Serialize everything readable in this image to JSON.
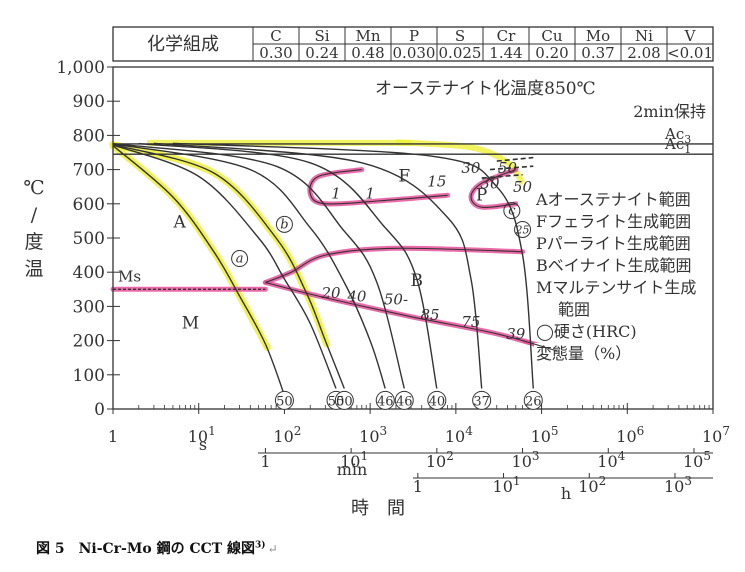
{
  "composition_table": {
    "header_label": "化学組成",
    "elements": [
      "C",
      "Si",
      "Mn",
      "P",
      "S",
      "Cr",
      "Cu",
      "Mo",
      "Ni",
      "V"
    ],
    "values": [
      "0.30",
      "0.24",
      "0.48",
      "0.030",
      "0.025",
      "1.44",
      "0.20",
      "0.37",
      "2.08",
      "<0.01"
    ]
  },
  "chart_data": {
    "type": "line",
    "title": "",
    "xscale": "log",
    "xlim": [
      1,
      10000000
    ],
    "ylim": [
      0,
      1000
    ],
    "ylabel": "温度/℃",
    "xlabel": "時間",
    "y_ticks": [
      "0",
      "100",
      "200",
      "300",
      "400",
      "500",
      "600",
      "700",
      "800",
      "900",
      "1,000"
    ],
    "x_axes": [
      {
        "unit": "s",
        "ticks": [
          {
            "at_s": 1,
            "base": "1",
            "exp": ""
          },
          {
            "at_s": 10,
            "base": "10",
            "exp": "1"
          },
          {
            "at_s": 100,
            "base": "10",
            "exp": "2"
          },
          {
            "at_s": 1000,
            "base": "10",
            "exp": "3"
          },
          {
            "at_s": 10000,
            "base": "10",
            "exp": "4"
          },
          {
            "at_s": 100000,
            "base": "10",
            "exp": "5"
          },
          {
            "at_s": 1000000,
            "base": "10",
            "exp": "6"
          },
          {
            "at_s": 10000000,
            "base": "10",
            "exp": "7"
          }
        ]
      },
      {
        "unit": "min",
        "ticks": [
          {
            "at_s": 60,
            "base": "1",
            "exp": ""
          },
          {
            "at_s": 600,
            "base": "10",
            "exp": "1"
          },
          {
            "at_s": 6000,
            "base": "10",
            "exp": "2"
          },
          {
            "at_s": 60000,
            "base": "10",
            "exp": "3"
          },
          {
            "at_s": 600000,
            "base": "10",
            "exp": "4"
          },
          {
            "at_s": 6000000,
            "base": "10",
            "exp": "5"
          }
        ]
      },
      {
        "unit": "h",
        "ticks": [
          {
            "at_s": 3600,
            "base": "1",
            "exp": ""
          },
          {
            "at_s": 36000,
            "base": "10",
            "exp": "1"
          },
          {
            "at_s": 360000,
            "base": "10",
            "exp": "2"
          },
          {
            "at_s": 3600000,
            "base": "10",
            "exp": "3"
          }
        ]
      }
    ],
    "austenitizing": {
      "text": "オーステナイト化温度850℃",
      "hold": "2min保持"
    },
    "critical_lines": [
      {
        "name": "Ac3",
        "label_base": "Ac",
        "label_sub": "3",
        "temp": 775
      },
      {
        "name": "Ac1",
        "label_base": "Ac",
        "label_sub": "1",
        "temp": 745
      }
    ],
    "ms": {
      "label": "Ms",
      "temp": 350
    },
    "cooling_curves": [
      {
        "points": [
          [
            1,
            770
          ],
          [
            5,
            620
          ],
          [
            15,
            460
          ],
          [
            30,
            330
          ],
          [
            60,
            190
          ],
          [
            100,
            40
          ]
        ],
        "hardness": "50",
        "highlight": true
      },
      {
        "points": [
          [
            1,
            772
          ],
          [
            10,
            680
          ],
          [
            50,
            500
          ],
          [
            100,
            380
          ],
          [
            200,
            250
          ],
          [
            400,
            60
          ]
        ],
        "hardness": "50",
        "highlight": false
      },
      {
        "points": [
          [
            1,
            773
          ],
          [
            15,
            690
          ],
          [
            80,
            500
          ],
          [
            180,
            340
          ],
          [
            300,
            200
          ],
          [
            500,
            60
          ]
        ],
        "hardness": "50",
        "highlight": true
      },
      {
        "points": [
          [
            1,
            775
          ],
          [
            40,
            700
          ],
          [
            200,
            530
          ],
          [
            500,
            370
          ],
          [
            1000,
            200
          ],
          [
            1500,
            60
          ]
        ],
        "hardness": "46",
        "highlight": false
      },
      {
        "points": [
          [
            1,
            776
          ],
          [
            80,
            710
          ],
          [
            500,
            520
          ],
          [
            1200,
            370
          ],
          [
            2500,
            60
          ]
        ],
        "hardness": "46",
        "highlight": false
      },
      {
        "points": [
          [
            2,
            776
          ],
          [
            200,
            720
          ],
          [
            1500,
            530
          ],
          [
            3500,
            380
          ],
          [
            6000,
            60
          ]
        ],
        "hardness": "40",
        "highlight": false
      },
      {
        "points": [
          [
            3,
            777
          ],
          [
            800,
            720
          ],
          [
            8000,
            560
          ],
          [
            15000,
            380
          ],
          [
            20000,
            60
          ]
        ],
        "hardness": "37",
        "highlight": false
      },
      {
        "points": [
          [
            5,
            777
          ],
          [
            5000,
            740
          ],
          [
            30000,
            650
          ],
          [
            60000,
            450
          ],
          [
            80000,
            60
          ]
        ],
        "hardness": "26",
        "highlight": false
      }
    ],
    "curve_markers": [
      {
        "label": "a",
        "x": 30,
        "y": 440
      },
      {
        "label": "b",
        "x": 100,
        "y": 540
      },
      {
        "label": "c",
        "x": 45000,
        "y": 580
      },
      {
        "label": "25",
        "x": 60000,
        "y": 525
      }
    ],
    "regions": [
      {
        "label": "A",
        "x": 6,
        "y": 530
      },
      {
        "label": "F",
        "x": 2500,
        "y": 665
      },
      {
        "label": "P",
        "x": 20000,
        "y": 610
      },
      {
        "label": "B",
        "x": 3500,
        "y": 360
      },
      {
        "label": "M",
        "x": 8,
        "y": 235
      }
    ],
    "ferrite_boundary": {
      "points": [
        [
          800,
          700
        ],
        [
          250,
          680
        ],
        [
          200,
          630
        ],
        [
          300,
          600
        ],
        [
          1500,
          610
        ],
        [
          8000,
          625
        ]
      ]
    },
    "pearlite_boundary": {
      "points": [
        [
          50000,
          700
        ],
        [
          20000,
          660
        ],
        [
          15000,
          620
        ],
        [
          20000,
          590
        ],
        [
          50000,
          600
        ]
      ]
    },
    "bainite_boundary": {
      "points": [
        [
          60,
          370
        ],
        [
          120,
          400
        ],
        [
          300,
          450
        ],
        [
          2000,
          470
        ],
        [
          60000,
          460
        ]
      ]
    },
    "bainite_finish": {
      "points": [
        [
          60,
          370
        ],
        [
          250,
          330
        ],
        [
          3000,
          270
        ],
        [
          30000,
          220
        ],
        [
          150000,
          170
        ]
      ]
    },
    "dashed_extensions": [
      {
        "points": [
          [
            30000,
            725
          ],
          [
            80000,
            735
          ]
        ]
      },
      {
        "points": [
          [
            25000,
            700
          ],
          [
            80000,
            710
          ]
        ]
      },
      {
        "points": [
          [
            20000,
            675
          ],
          [
            60000,
            685
          ]
        ]
      }
    ],
    "transformation_amounts": [
      {
        "text": "1",
        "x": 400,
        "y": 615
      },
      {
        "text": "1",
        "x": 1000,
        "y": 615
      },
      {
        "text": "15",
        "x": 6000,
        "y": 650
      },
      {
        "text": "30",
        "x": 15000,
        "y": 690
      },
      {
        "text": "50",
        "x": 40000,
        "y": 690
      },
      {
        "text": "30",
        "x": 25000,
        "y": 645
      },
      {
        "text": "50",
        "x": 60000,
        "y": 635
      },
      {
        "text": "20",
        "x": 350,
        "y": 325
      },
      {
        "text": "40",
        "x": 700,
        "y": 315
      },
      {
        "text": "50-",
        "x": 2000,
        "y": 305
      },
      {
        "text": "85",
        "x": 5000,
        "y": 260
      },
      {
        "text": "75",
        "x": 15000,
        "y": 240
      },
      {
        "text": "39",
        "x": 50000,
        "y": 205
      }
    ],
    "legend": [
      "Aオーステナイト範囲",
      "Fフェライト生成範囲",
      "Pパーライト生成範囲",
      "Bベイナイト生成範囲",
      "Mマルテンサイト生成",
      "範囲",
      "◯硬さ(HRC)",
      "変態量（%）"
    ],
    "colors": {
      "highlight_yellow": "#eef03a",
      "highlight_pink": "#e8509a",
      "ink": "#333333"
    }
  },
  "caption": {
    "text": "図 5　Ni-Cr-Mo 鋼の CCT 線図",
    "ref": "3)",
    "return_mark": "↵"
  }
}
